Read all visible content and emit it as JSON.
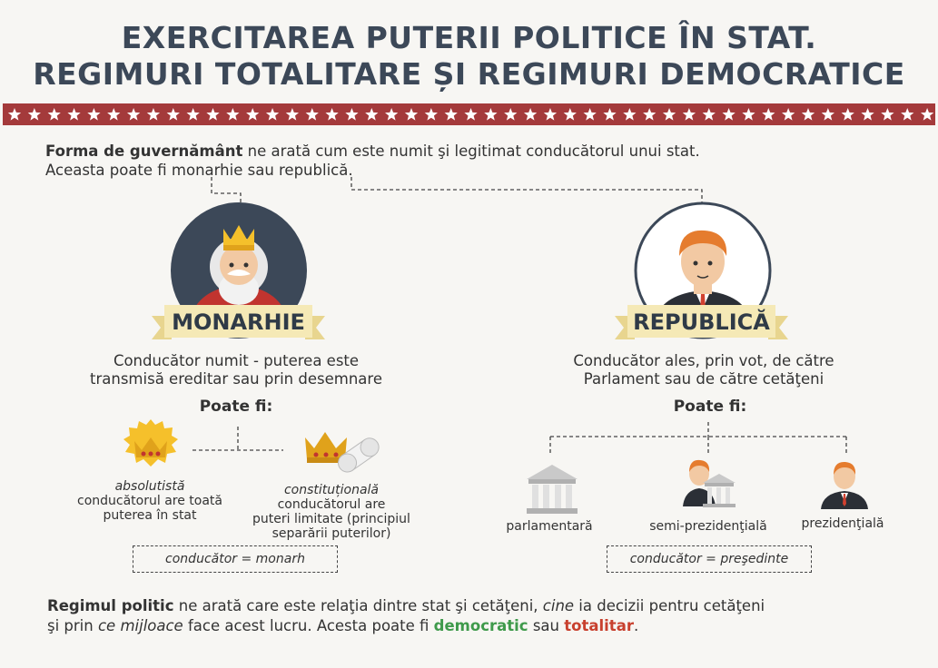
{
  "header": {
    "title_line1": "EXERCITAREA PUTERII POLITICE ÎN STAT.",
    "title_line2": "REGIMURI TOTALITARE ȘI REGIMURI DEMOCRATICE"
  },
  "intro": {
    "term": "Forma de guvernământ",
    "line1_rest": " ne arată cum este numit şi legitimat conducătorul unui stat.",
    "line2": "Aceasta poate fi monarhie sau republică."
  },
  "monarchy": {
    "label": "MONARHIE",
    "desc_line1": "Conducător numit - puterea este",
    "desc_line2": "transmisă ereditar sau prin desemnare",
    "poate_fi": "Poate fi:",
    "types": [
      {
        "name": "absolutistă",
        "line1": "conducătorul are toată",
        "line2": "puterea în stat"
      },
      {
        "name": "constituțională",
        "line1": "conducătorul are",
        "line2": "puteri limitate (principiul",
        "line3": "separării puterilor)"
      }
    ],
    "ruler_box": "conducător = monarh"
  },
  "republic": {
    "label": "REPUBLICĂ",
    "desc_line1": "Conducător ales, prin vot, de către",
    "desc_line2": "Parlament sau de către cetăţeni",
    "poate_fi": "Poate fi:",
    "types": [
      {
        "name": "parlamentară"
      },
      {
        "name": "semi-prezidenţială"
      },
      {
        "name": "prezidenţială"
      }
    ],
    "ruler_box": "conducător = preşedinte"
  },
  "regime": {
    "term": "Regimul politic",
    "line1_a": " ne arată care este relaţia dintre stat şi cetăţeni, ",
    "line1_cine": "cine",
    "line1_b": " ia decizii pentru cetăţeni",
    "line2_a": "şi prin ",
    "line2_mijloace": "ce mijloace",
    "line2_b": " face acest lucru. Acesta poate fi ",
    "democratic": "democratic",
    "sau": " sau ",
    "totalitar": "totalitar",
    "end": "."
  },
  "colors": {
    "band": "#a43a3b",
    "title": "#3c4858",
    "ribbon": "#f5e9b6",
    "democratic": "#3f9a4b",
    "totalitar": "#c8402e"
  }
}
